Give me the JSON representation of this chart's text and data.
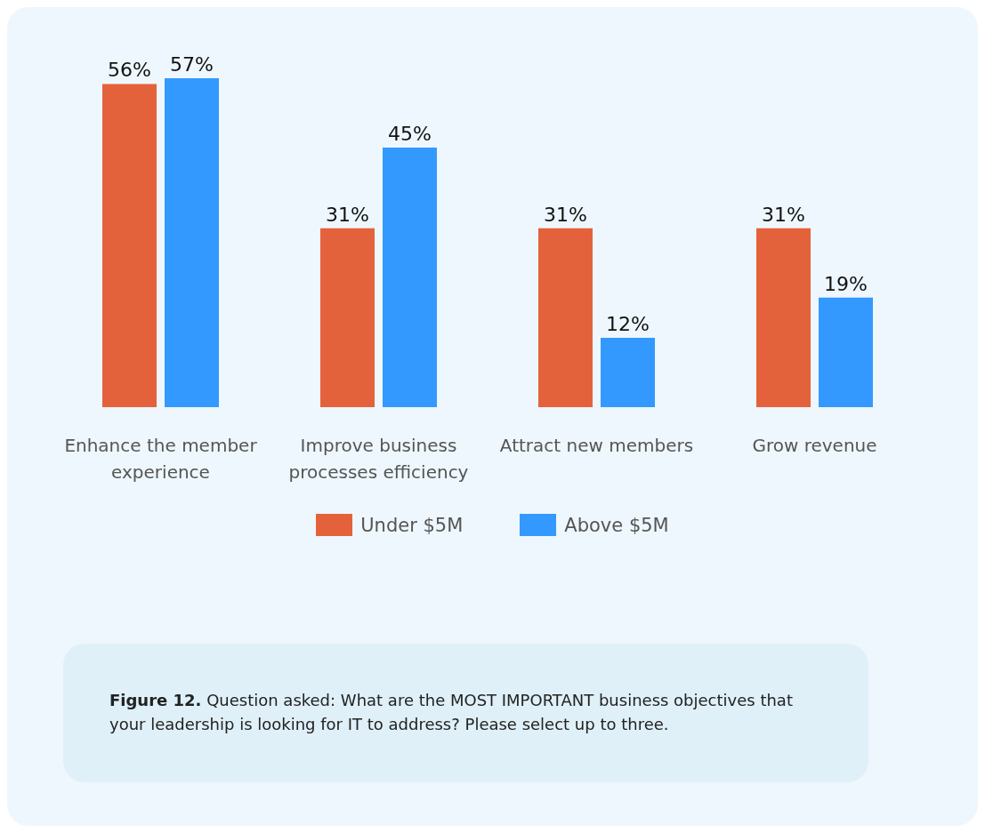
{
  "chart_data": {
    "type": "bar",
    "categories": [
      "Enhance the member experience",
      "Improve business processes efficiency",
      "Attract new members",
      "Grow revenue"
    ],
    "series": [
      {
        "name": "Under $5M",
        "color": "#e4623b",
        "values": [
          56,
          31,
          31,
          31
        ],
        "value_labels": [
          "56%",
          "31%",
          "31%",
          "31%"
        ]
      },
      {
        "name": "Above $5M",
        "color": "#3399fe",
        "values": [
          57,
          45,
          12,
          19
        ],
        "value_labels": [
          "57%",
          "45%",
          "12%",
          "19%"
        ]
      }
    ],
    "legend": "bottom",
    "grid": false,
    "annotations": [
      "Figure 12. Question asked: What are the MOST IMPORTANT business objectives that your leadership is looking for IT to address? Please select up to three."
    ]
  }
}
